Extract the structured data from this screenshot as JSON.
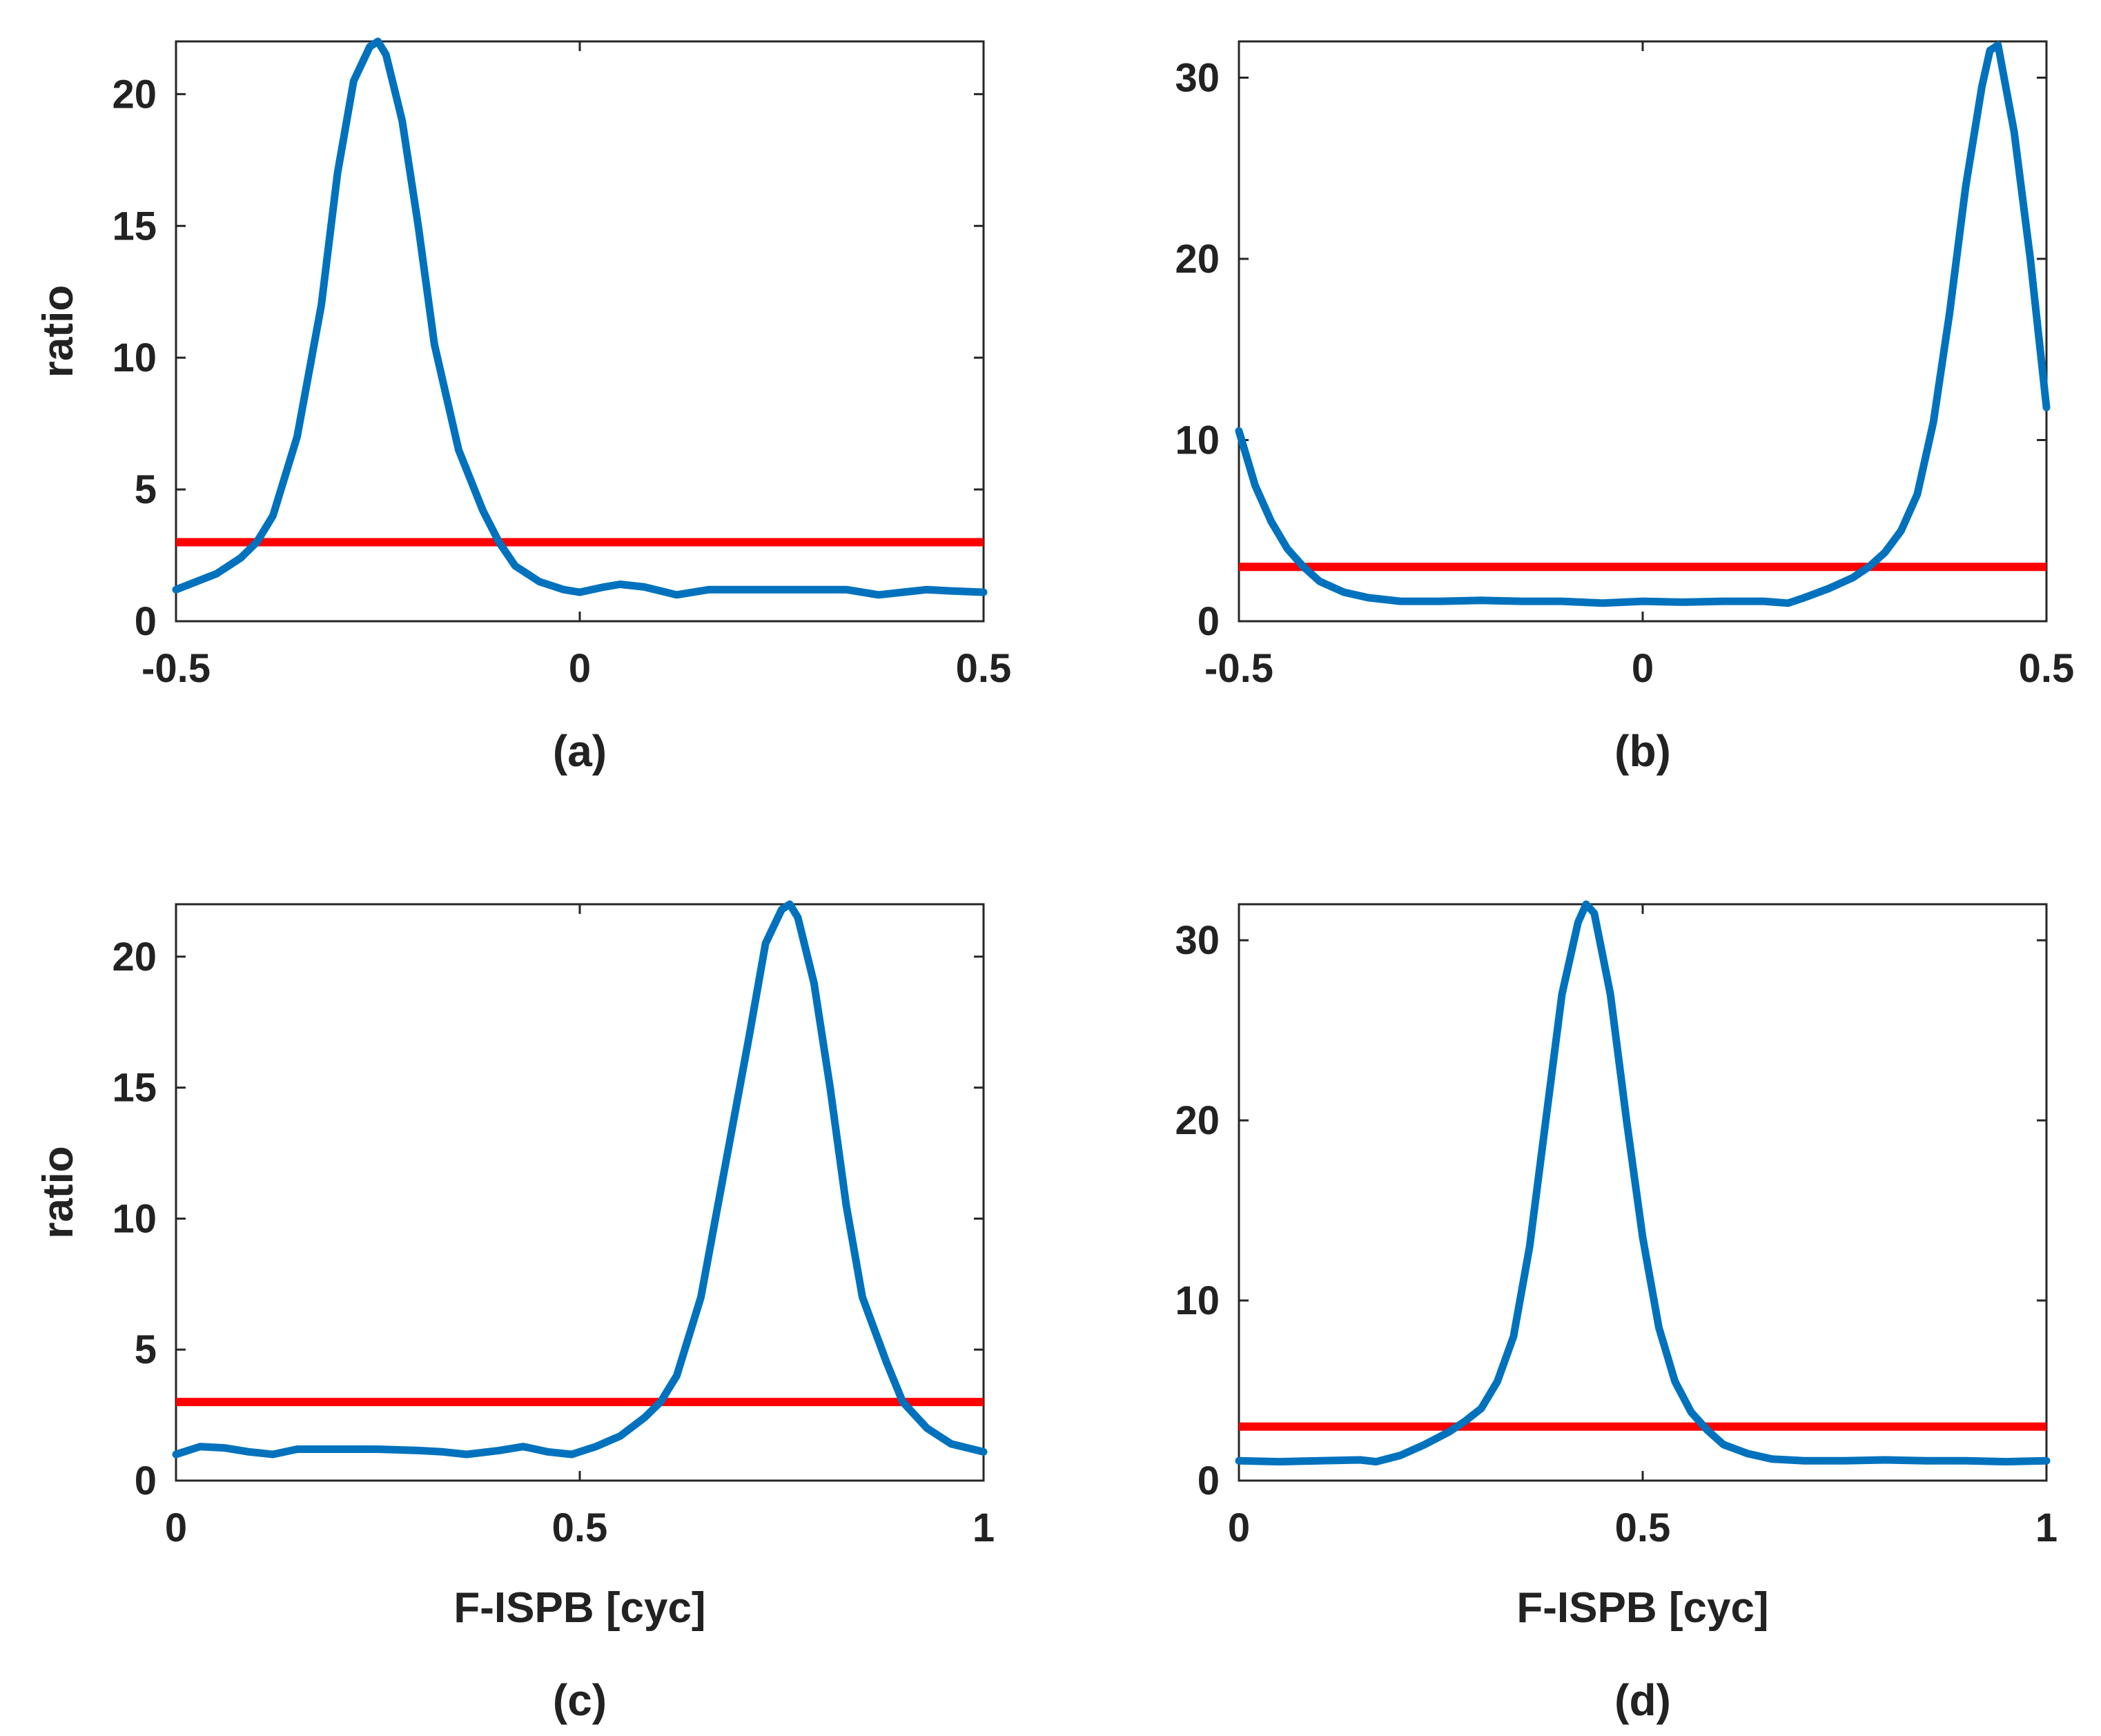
{
  "colors": {
    "series": "#0072BD",
    "threshold": "#FF0000",
    "axis": "#262626",
    "text": "#222222"
  },
  "chart_data": [
    {
      "type": "line",
      "panel_label": "(a)",
      "xlabel": "",
      "ylabel": "ratio",
      "xlim": [
        -0.5,
        0.5
      ],
      "ylim": [
        0,
        22
      ],
      "xticks": [
        -0.5,
        0,
        0.5
      ],
      "xtick_labels": [
        "-0.5",
        "0",
        "0.5"
      ],
      "yticks": [
        0,
        5,
        10,
        15,
        20
      ],
      "ytick_labels": [
        "0",
        "5",
        "10",
        "15",
        "20"
      ],
      "threshold": 3,
      "series": [
        {
          "name": "ratio",
          "x": [
            -0.5,
            -0.45,
            -0.42,
            -0.4,
            -0.38,
            -0.35,
            -0.32,
            -0.3,
            -0.28,
            -0.26,
            -0.25,
            -0.24,
            -0.22,
            -0.2,
            -0.18,
            -0.15,
            -0.12,
            -0.1,
            -0.08,
            -0.05,
            -0.02,
            0,
            0.03,
            0.05,
            0.08,
            0.12,
            0.16,
            0.2,
            0.25,
            0.3,
            0.33,
            0.37,
            0.4,
            0.43,
            0.46,
            0.5
          ],
          "y": [
            1.2,
            1.8,
            2.4,
            3.0,
            4.0,
            7.0,
            12.0,
            17.0,
            20.5,
            21.8,
            22.0,
            21.5,
            19.0,
            15.0,
            10.5,
            6.5,
            4.2,
            3.0,
            2.1,
            1.5,
            1.2,
            1.1,
            1.3,
            1.4,
            1.3,
            1.0,
            1.2,
            1.2,
            1.2,
            1.2,
            1.2,
            1.0,
            1.1,
            1.2,
            1.15,
            1.1
          ]
        }
      ]
    },
    {
      "type": "line",
      "panel_label": "(b)",
      "xlabel": "",
      "ylabel": "",
      "xlim": [
        -0.5,
        0.5
      ],
      "ylim": [
        0,
        32
      ],
      "xticks": [
        -0.5,
        0,
        0.5
      ],
      "xtick_labels": [
        "-0.5",
        "0",
        "0.5"
      ],
      "yticks": [
        0,
        10,
        20,
        30
      ],
      "ytick_labels": [
        "0",
        "10",
        "20",
        "30"
      ],
      "threshold": 3,
      "series": [
        {
          "name": "ratio",
          "x": [
            -0.5,
            -0.48,
            -0.46,
            -0.44,
            -0.42,
            -0.4,
            -0.37,
            -0.34,
            -0.3,
            -0.25,
            -0.2,
            -0.15,
            -0.1,
            -0.05,
            0,
            0.05,
            0.1,
            0.15,
            0.18,
            0.2,
            0.23,
            0.26,
            0.28,
            0.3,
            0.32,
            0.34,
            0.36,
            0.38,
            0.4,
            0.42,
            0.43,
            0.44,
            0.46,
            0.48,
            0.5
          ],
          "y": [
            10.5,
            7.5,
            5.5,
            4.0,
            3.0,
            2.2,
            1.6,
            1.3,
            1.1,
            1.1,
            1.15,
            1.1,
            1.1,
            1.0,
            1.1,
            1.05,
            1.1,
            1.1,
            1.0,
            1.3,
            1.8,
            2.4,
            3.0,
            3.8,
            5.0,
            7.0,
            11.0,
            17.0,
            24.0,
            29.5,
            31.5,
            31.8,
            27.0,
            20.0,
            11.8
          ]
        }
      ]
    },
    {
      "type": "line",
      "panel_label": "(c)",
      "xlabel": "F-ISPB [cyc]",
      "ylabel": "ratio",
      "xlim": [
        0,
        1
      ],
      "ylim": [
        0,
        22
      ],
      "xticks": [
        0,
        0.5,
        1
      ],
      "xtick_labels": [
        "0",
        "0.5",
        "1"
      ],
      "yticks": [
        0,
        5,
        10,
        15,
        20
      ],
      "ytick_labels": [
        "0",
        "5",
        "10",
        "15",
        "20"
      ],
      "threshold": 3,
      "series": [
        {
          "name": "ratio",
          "x": [
            0,
            0.03,
            0.06,
            0.09,
            0.12,
            0.15,
            0.2,
            0.25,
            0.3,
            0.33,
            0.36,
            0.4,
            0.43,
            0.46,
            0.49,
            0.52,
            0.55,
            0.58,
            0.6,
            0.62,
            0.65,
            0.68,
            0.71,
            0.73,
            0.75,
            0.76,
            0.77,
            0.79,
            0.81,
            0.83,
            0.85,
            0.88,
            0.9,
            0.93,
            0.96,
            1.0
          ],
          "y": [
            1.0,
            1.3,
            1.25,
            1.1,
            1.0,
            1.2,
            1.2,
            1.2,
            1.15,
            1.1,
            1.0,
            1.15,
            1.3,
            1.1,
            1.0,
            1.3,
            1.7,
            2.4,
            3.0,
            4.0,
            7.0,
            12.0,
            17.0,
            20.5,
            21.8,
            22.0,
            21.5,
            19.0,
            15.0,
            10.5,
            7.0,
            4.5,
            3.0,
            2.0,
            1.4,
            1.1
          ]
        }
      ]
    },
    {
      "type": "line",
      "panel_label": "(d)",
      "xlabel": "F-ISPB [cyc]",
      "ylabel": "",
      "xlim": [
        0,
        1
      ],
      "ylim": [
        0,
        32
      ],
      "xticks": [
        0,
        0.5,
        1
      ],
      "xtick_labels": [
        "0",
        "0.5",
        "1"
      ],
      "yticks": [
        0,
        10,
        20,
        30
      ],
      "ytick_labels": [
        "0",
        "10",
        "20",
        "30"
      ],
      "threshold": 3,
      "series": [
        {
          "name": "ratio",
          "x": [
            0,
            0.05,
            0.1,
            0.15,
            0.17,
            0.2,
            0.23,
            0.26,
            0.28,
            0.3,
            0.32,
            0.34,
            0.36,
            0.38,
            0.4,
            0.42,
            0.43,
            0.44,
            0.46,
            0.48,
            0.5,
            0.52,
            0.54,
            0.56,
            0.58,
            0.6,
            0.63,
            0.66,
            0.7,
            0.75,
            0.8,
            0.85,
            0.9,
            0.95,
            1.0
          ],
          "y": [
            1.1,
            1.05,
            1.1,
            1.15,
            1.05,
            1.4,
            2.0,
            2.7,
            3.3,
            4.0,
            5.5,
            8.0,
            13.0,
            20.0,
            27.0,
            31.0,
            32.0,
            31.5,
            27.0,
            20.0,
            13.5,
            8.5,
            5.5,
            3.8,
            2.8,
            2.0,
            1.5,
            1.2,
            1.1,
            1.1,
            1.15,
            1.1,
            1.1,
            1.05,
            1.1
          ]
        }
      ]
    }
  ]
}
